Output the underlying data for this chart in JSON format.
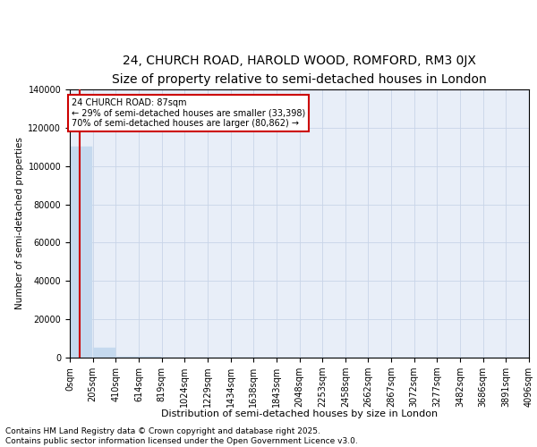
{
  "title": "24, CHURCH ROAD, HAROLD WOOD, ROMFORD, RM3 0JX",
  "subtitle": "Size of property relative to semi-detached houses in London",
  "xlabel": "Distribution of semi-detached houses by size in London",
  "ylabel": "Number of semi-detached properties",
  "bar_color": "#c5d9ee",
  "bar_edge_color": "#c5d9ee",
  "grid_color": "#c8d4e8",
  "background_color": "#e8eef8",
  "annotation_text": "24 CHURCH ROAD: 87sqm\n← 29% of semi-detached houses are smaller (33,398)\n70% of semi-detached houses are larger (80,862) →",
  "annotation_box_edgecolor": "#cc0000",
  "vline_color": "#cc0000",
  "property_size_sqm": 87,
  "bins": [
    0,
    205,
    410,
    614,
    819,
    1024,
    1229,
    1434,
    1638,
    1843,
    2048,
    2253,
    2458,
    2662,
    2867,
    3072,
    3277,
    3482,
    3686,
    3891,
    4096
  ],
  "bin_labels": [
    "0sqm",
    "205sqm",
    "410sqm",
    "614sqm",
    "819sqm",
    "1024sqm",
    "1229sqm",
    "1434sqm",
    "1638sqm",
    "1843sqm",
    "2048sqm",
    "2253sqm",
    "2458sqm",
    "2662sqm",
    "2867sqm",
    "3072sqm",
    "3277sqm",
    "3482sqm",
    "3686sqm",
    "3891sqm",
    "4096sqm"
  ],
  "bar_heights": [
    110000,
    5000,
    600,
    250,
    120,
    70,
    40,
    25,
    15,
    10,
    8,
    6,
    5,
    4,
    3,
    3,
    2,
    2,
    1,
    1
  ],
  "ylim": [
    0,
    140000
  ],
  "yticks": [
    0,
    20000,
    40000,
    60000,
    80000,
    100000,
    120000,
    140000
  ],
  "footer_text": "Contains HM Land Registry data © Crown copyright and database right 2025.\nContains public sector information licensed under the Open Government Licence v3.0.",
  "title_fontsize": 10,
  "tick_fontsize": 7,
  "ylabel_fontsize": 7.5,
  "xlabel_fontsize": 8,
  "annotation_fontsize": 7,
  "footer_fontsize": 6.5
}
